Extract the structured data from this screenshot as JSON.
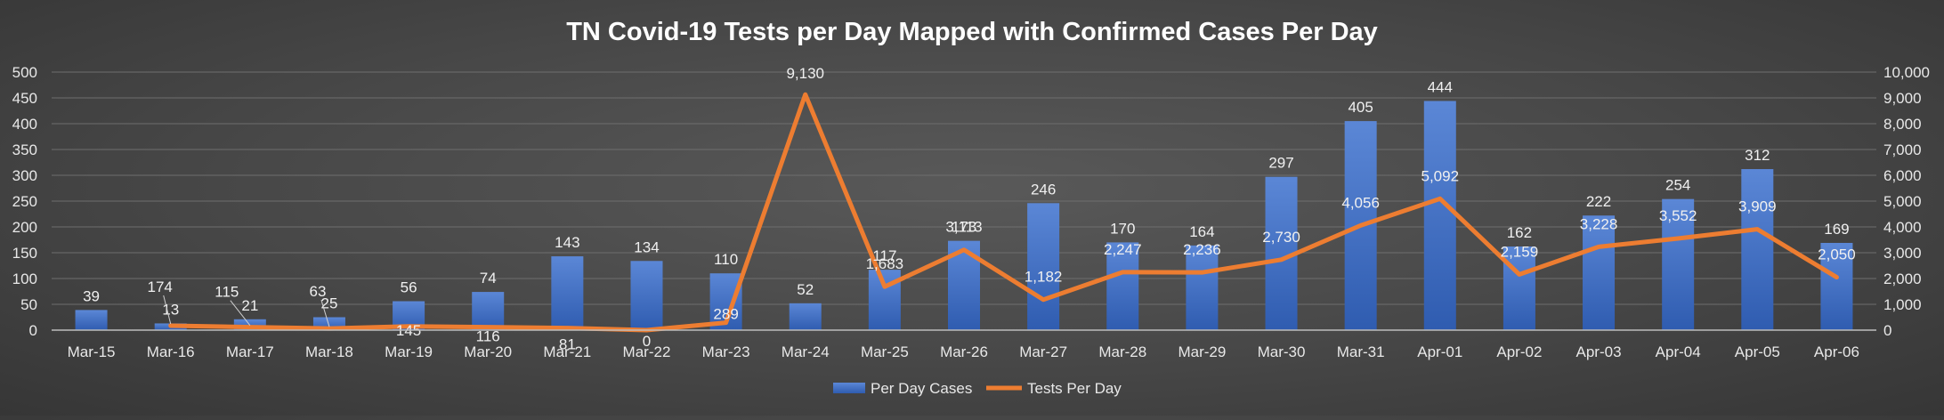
{
  "chart_data": {
    "type": "bar",
    "title": "TN Covid-19 Tests per Day Mapped with Confirmed Cases Per Day",
    "categories": [
      "Mar-15",
      "Mar-16",
      "Mar-17",
      "Mar-18",
      "Mar-19",
      "Mar-20",
      "Mar-21",
      "Mar-22",
      "Mar-23",
      "Mar-24",
      "Mar-25",
      "Mar-26",
      "Mar-27",
      "Mar-28",
      "Mar-29",
      "Mar-30",
      "Mar-31",
      "Apr-01",
      "Apr-02",
      "Apr-03",
      "Apr-04",
      "Apr-05",
      "Apr-06"
    ],
    "series": [
      {
        "name": "Per Day Cases",
        "type": "bar",
        "axis": "left",
        "color": "#4472C4",
        "values": [
          39,
          13,
          21,
          25,
          56,
          74,
          143,
          134,
          110,
          52,
          117,
          173,
          246,
          170,
          164,
          297,
          405,
          444,
          162,
          222,
          254,
          312,
          169
        ],
        "labels": [
          "39",
          "13",
          "21",
          "25",
          "56",
          "74",
          "143",
          "134",
          "110",
          "52",
          "117",
          "173",
          "246",
          "170",
          "164",
          "297",
          "405",
          "444",
          "162",
          "222",
          "254",
          "312",
          "169"
        ]
      },
      {
        "name": "Tests Per Day",
        "type": "line",
        "axis": "right",
        "color": "#ED7D31",
        "values": [
          null,
          174,
          115,
          63,
          145,
          116,
          81,
          0,
          289,
          9130,
          1683,
          3113,
          1182,
          2247,
          2236,
          2730,
          4056,
          5092,
          2159,
          3228,
          3552,
          3909,
          2050
        ],
        "labels": [
          "",
          "174",
          "115",
          "63",
          "145",
          "116",
          "81",
          "0",
          "289",
          "9,130",
          "1,683",
          "3,113",
          "1,182",
          "2,247",
          "2,236",
          "2,730",
          "4,056",
          "5,092",
          "2,159",
          "3,228",
          "3,552",
          "3,909",
          "2,050"
        ]
      }
    ],
    "y_left": {
      "min": 0,
      "max": 500,
      "step": 50,
      "ticks": [
        "0",
        "50",
        "100",
        "150",
        "200",
        "250",
        "300",
        "350",
        "400",
        "450",
        "500"
      ]
    },
    "y_right": {
      "min": 0,
      "max": 10000,
      "step": 1000,
      "ticks": [
        "0",
        "1,000",
        "2,000",
        "3,000",
        "4,000",
        "5,000",
        "6,000",
        "7,000",
        "8,000",
        "9,000",
        "10,000"
      ]
    },
    "xlabel": "",
    "ylabel": "",
    "grid": true,
    "legend": "bottom-center"
  }
}
